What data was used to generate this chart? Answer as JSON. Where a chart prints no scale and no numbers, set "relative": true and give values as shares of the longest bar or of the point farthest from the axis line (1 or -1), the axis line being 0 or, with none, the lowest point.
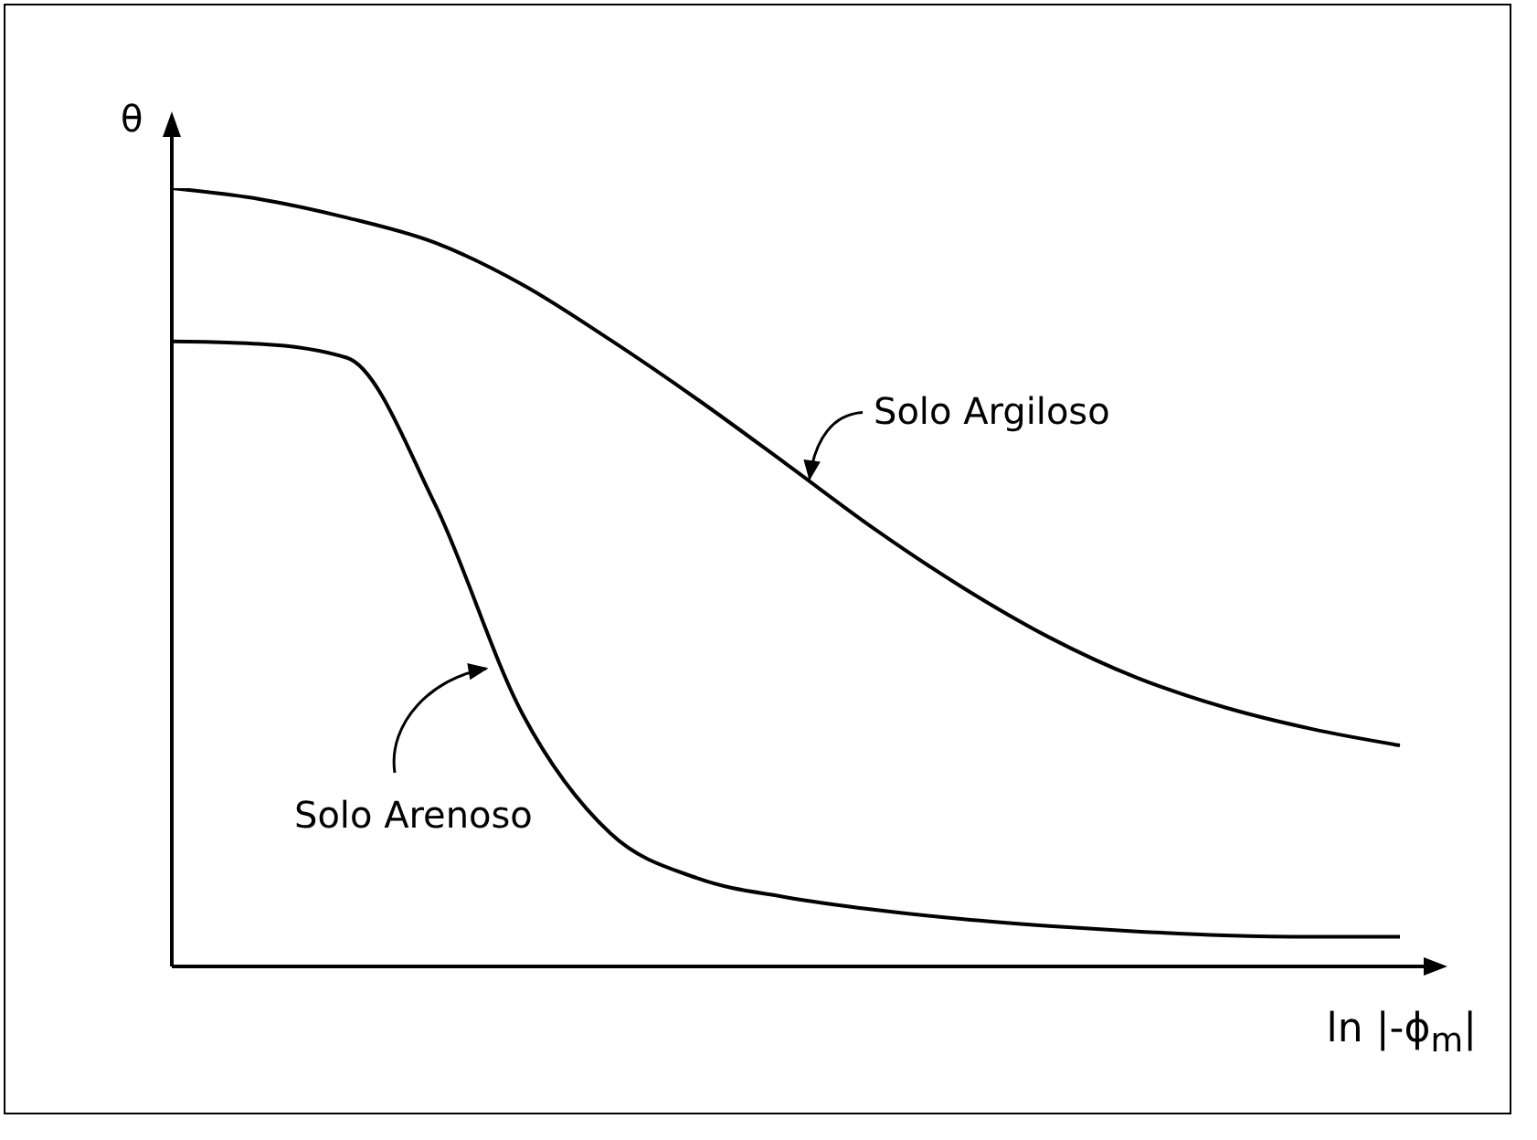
{
  "chart_data": {
    "type": "line",
    "relative": true,
    "xlabel": "ln |-ϕ$_{m}$|",
    "ylabel": "θ",
    "legend": false,
    "grid": false,
    "marker": "none",
    "line_style": "solid",
    "categories": [
      null,
      null,
      null,
      null,
      null,
      null,
      null,
      null,
      null,
      null,
      null,
      null,
      null,
      null,
      null
    ],
    "series": [
      {
        "name": "Solo Argiloso",
        "color": "#000000",
        "values": [
          1,
          0.986,
          0.962,
          0.93,
          0.876,
          0.805,
          0.728,
          0.646,
          0.563,
          0.488,
          0.423,
          0.371,
          0.333,
          0.305,
          0.284
        ]
      },
      {
        "name": "Solo Arenoso",
        "color": "#000000",
        "values": [
          0.803,
          0.8,
          0.782,
          0.594,
          0.324,
          0.171,
          0.113,
          0.089,
          0.073,
          0.061,
          0.052,
          0.045,
          0.04,
          0.038,
          0.038
        ]
      }
    ]
  }
}
